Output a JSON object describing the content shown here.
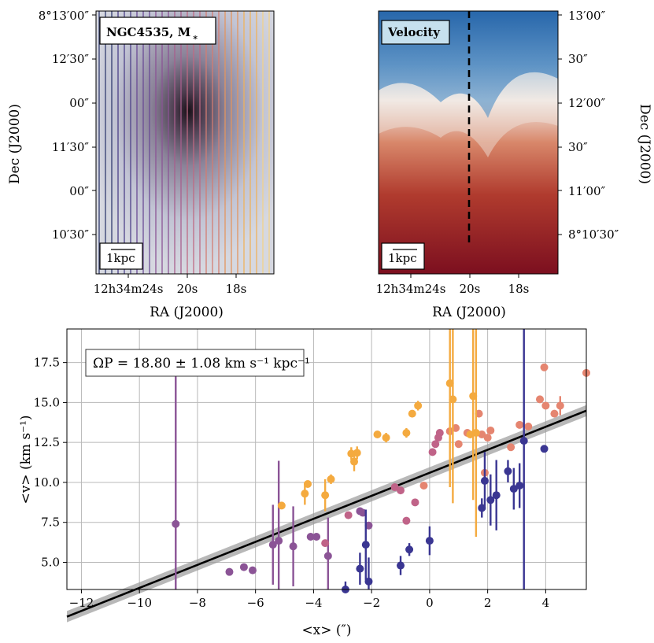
{
  "panels": {
    "left": {
      "badge": "NGC4535, M",
      "badge_sub": "∗",
      "scalebar": "1kpc",
      "y_ticks": [
        "8°13′00″",
        "12′30″",
        "00″",
        "11′30″",
        "00″",
        "10′30″"
      ],
      "x_ticks": [
        "12h34m24s",
        "20s",
        "18s"
      ],
      "x_label": "RA (J2000)",
      "y_label": "Dec (J2000)"
    },
    "right": {
      "badge": "Velocity",
      "scalebar": "1kpc",
      "y_ticks": [
        "13′00″",
        "30″",
        "12′00″",
        "30″",
        "11′00″",
        "8°10′30″"
      ],
      "x_ticks": [
        "12h34m24s",
        "20s",
        "18s"
      ],
      "x_label": "RA (J2000)",
      "y_label": "Dec (J2000)"
    }
  },
  "chart_data": {
    "type": "scatter",
    "xlabel": "<x> (″)",
    "ylabel": "<v> (km s⁻¹)",
    "xlim": [
      -12.5,
      5.4
    ],
    "ylim": [
      3.3,
      19.6
    ],
    "x_ticks": [
      -12,
      -10,
      -8,
      -6,
      -4,
      -2,
      0,
      2,
      4
    ],
    "y_ticks": [
      5.0,
      7.5,
      10.0,
      12.5,
      15.0,
      17.5
    ],
    "grid": true,
    "annotation": "ΩP = 18.80 ± 1.08 km s⁻¹ kpc⁻¹",
    "fit": {
      "slope": 0.72,
      "intercept": 10.6,
      "band": 0.35
    },
    "series": [
      {
        "name": "purple",
        "color": "#8b5496",
        "points": [
          [
            -8.75,
            7.4,
            9.5
          ],
          [
            -6.9,
            4.4,
            0
          ],
          [
            -6.4,
            4.7,
            0
          ],
          [
            -6.1,
            4.5,
            0
          ],
          [
            -5.4,
            6.1,
            2.5
          ],
          [
            -5.2,
            6.35,
            5.0
          ],
          [
            -4.7,
            6.0,
            2.5
          ],
          [
            -4.1,
            6.6,
            0
          ],
          [
            -3.9,
            6.6,
            0
          ],
          [
            -3.5,
            5.4,
            2.4
          ],
          [
            -2.4,
            8.2,
            0
          ],
          [
            -2.3,
            8.1,
            0
          ],
          [
            -2.1,
            7.3,
            0
          ]
        ]
      },
      {
        "name": "mauve",
        "color": "#c06388",
        "points": [
          [
            -3.6,
            6.2,
            0
          ],
          [
            -2.8,
            7.95,
            0
          ],
          [
            -1.0,
            9.5,
            0
          ],
          [
            -1.2,
            9.7,
            0
          ],
          [
            -0.5,
            8.75,
            0
          ],
          [
            -0.8,
            7.6,
            0
          ],
          [
            0.3,
            12.8,
            0
          ],
          [
            0.2,
            12.4,
            0
          ],
          [
            0.1,
            11.9,
            0
          ],
          [
            0.35,
            13.1,
            0
          ]
        ]
      },
      {
        "name": "salmon",
        "color": "#e58570",
        "points": [
          [
            0.7,
            13.2,
            0
          ],
          [
            1.0,
            12.4,
            0
          ],
          [
            1.3,
            13.1,
            0
          ],
          [
            1.7,
            14.3,
            0
          ],
          [
            1.8,
            13.0,
            0
          ],
          [
            2.0,
            12.8,
            0
          ],
          [
            2.1,
            13.25,
            0
          ],
          [
            1.9,
            10.6,
            0
          ],
          [
            2.8,
            12.2,
            0
          ],
          [
            3.1,
            13.6,
            0
          ],
          [
            3.4,
            13.5,
            0
          ],
          [
            3.8,
            15.2,
            0
          ],
          [
            3.95,
            17.2,
            0
          ],
          [
            4.0,
            14.8,
            0
          ],
          [
            4.3,
            14.3,
            0
          ],
          [
            4.5,
            14.8,
            0.6
          ],
          [
            5.4,
            16.85,
            0
          ],
          [
            0.9,
            13.4,
            0
          ],
          [
            -0.2,
            9.8,
            0
          ]
        ]
      },
      {
        "name": "orange",
        "color": "#f4aa3f",
        "points": [
          [
            -5.1,
            8.55,
            0
          ],
          [
            -4.3,
            9.3,
            0.7
          ],
          [
            -4.2,
            9.9,
            0
          ],
          [
            -3.6,
            9.2,
            1.0
          ],
          [
            -3.4,
            10.2,
            0.3
          ],
          [
            -2.7,
            11.8,
            0.4
          ],
          [
            -2.6,
            11.3,
            0.6
          ],
          [
            -2.5,
            11.85,
            0.4
          ],
          [
            -1.8,
            13.0,
            0
          ],
          [
            -1.5,
            12.8,
            0.3
          ],
          [
            -0.8,
            13.1,
            0.3
          ],
          [
            -0.6,
            14.3,
            0
          ],
          [
            -0.4,
            14.8,
            0.3
          ],
          [
            0.7,
            16.2,
            6.5
          ],
          [
            0.8,
            15.2,
            6.5
          ],
          [
            1.5,
            15.4,
            6.5
          ],
          [
            1.6,
            13.1,
            6.5
          ],
          [
            1.4,
            13.0,
            0
          ]
        ]
      },
      {
        "name": "navy",
        "color": "#3a3692",
        "points": [
          [
            -2.9,
            3.3,
            0.5
          ],
          [
            -2.4,
            4.6,
            1.0
          ],
          [
            -2.2,
            6.1,
            2.2
          ],
          [
            -2.1,
            3.8,
            1.5
          ],
          [
            -1.0,
            4.8,
            0.6
          ],
          [
            -0.7,
            5.8,
            0.4
          ],
          [
            0.0,
            6.35,
            0.9
          ],
          [
            1.8,
            8.4,
            0.6
          ],
          [
            1.9,
            10.1,
            1.8
          ],
          [
            2.1,
            8.9,
            1.6
          ],
          [
            2.3,
            9.2,
            2.2
          ],
          [
            2.7,
            10.7,
            0.7
          ],
          [
            2.9,
            9.6,
            1.3
          ],
          [
            3.1,
            9.8,
            1.4
          ],
          [
            3.25,
            12.6,
            10.0
          ],
          [
            3.95,
            12.1,
            0
          ]
        ]
      }
    ]
  }
}
